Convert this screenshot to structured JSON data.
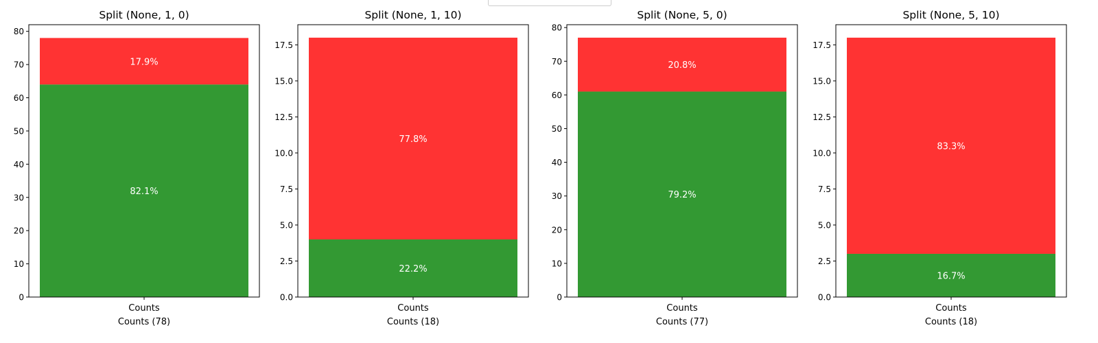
{
  "chart_data": [
    {
      "type": "bar",
      "title": "Split (None, 1, 0)",
      "categories": [
        "Counts"
      ],
      "xlabel": "Counts (78)",
      "ylim": [
        0,
        82
      ],
      "yticks": [
        0,
        10,
        20,
        30,
        40,
        50,
        60,
        70,
        80
      ],
      "ytick_labels": [
        "0",
        "10",
        "20",
        "30",
        "40",
        "50",
        "60",
        "70",
        "80"
      ],
      "series": [
        {
          "values": [
            64
          ],
          "label": "82.1%",
          "color": "#339933"
        },
        {
          "values": [
            14
          ],
          "label": "17.9%",
          "color": "#ff3333"
        }
      ]
    },
    {
      "type": "bar",
      "title": "Split (None, 1, 10)",
      "categories": [
        "Counts"
      ],
      "xlabel": "Counts (18)",
      "ylim": [
        0,
        18.9
      ],
      "yticks": [
        0,
        2.5,
        5,
        7.5,
        10,
        12.5,
        15,
        17.5
      ],
      "ytick_labels": [
        "0.0",
        "2.5",
        "5.0",
        "7.5",
        "10.0",
        "12.5",
        "15.0",
        "17.5"
      ],
      "series": [
        {
          "values": [
            4
          ],
          "label": "22.2%",
          "color": "#339933"
        },
        {
          "values": [
            14
          ],
          "label": "77.8%",
          "color": "#ff3333"
        }
      ]
    },
    {
      "type": "bar",
      "title": "Split (None, 5, 0)",
      "categories": [
        "Counts"
      ],
      "xlabel": "Counts (77)",
      "ylim": [
        0,
        80.85
      ],
      "yticks": [
        0,
        10,
        20,
        30,
        40,
        50,
        60,
        70,
        80
      ],
      "ytick_labels": [
        "0",
        "10",
        "20",
        "30",
        "40",
        "50",
        "60",
        "70",
        "80"
      ],
      "series": [
        {
          "values": [
            61
          ],
          "label": "79.2%",
          "color": "#339933"
        },
        {
          "values": [
            16
          ],
          "label": "20.8%",
          "color": "#ff3333"
        }
      ]
    },
    {
      "type": "bar",
      "title": "Split (None, 5, 10)",
      "categories": [
        "Counts"
      ],
      "xlabel": "Counts (18)",
      "ylim": [
        0,
        18.9
      ],
      "yticks": [
        0,
        2.5,
        5,
        7.5,
        10,
        12.5,
        15,
        17.5
      ],
      "ytick_labels": [
        "0.0",
        "2.5",
        "5.0",
        "7.5",
        "10.0",
        "12.5",
        "15.0",
        "17.5"
      ],
      "series": [
        {
          "values": [
            3
          ],
          "label": "16.7%",
          "color": "#339933"
        },
        {
          "values": [
            15
          ],
          "label": "83.3%",
          "color": "#ff3333"
        }
      ]
    }
  ]
}
